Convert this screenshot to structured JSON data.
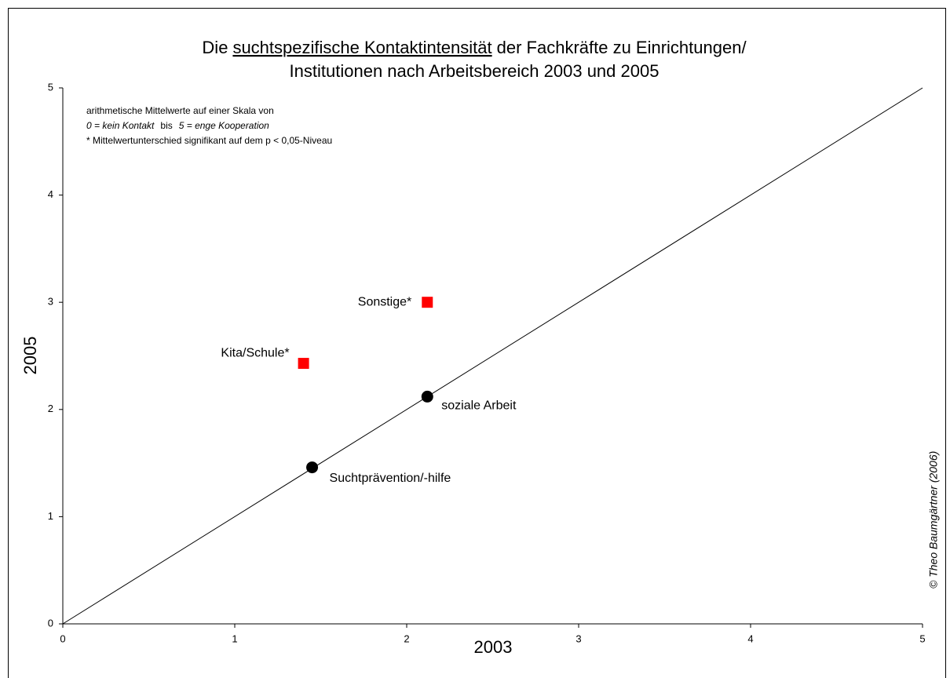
{
  "chart_data": {
    "type": "scatter",
    "title": {
      "line1": [
        "Die",
        "suchtspezifische Kontaktintensität",
        "der Fachkräfte zu Einrichtungen/"
      ],
      "line2": "Institutionen nach Arbeitsbereich 2003 und 2005"
    },
    "notes": {
      "line1": "arithmetische Mittelwerte auf einer Skala von",
      "line2": [
        "0 = kein Kontakt",
        "bis",
        "5 = enge Kooperation"
      ],
      "line3": "* Mittelwertunterschied signifikant auf dem p < 0,05-Niveau"
    },
    "copyright": "© Theo Baumgärtner (2006)",
    "xlabel": "2003",
    "ylabel": "2005",
    "xlim": [
      0,
      5
    ],
    "ylim": [
      0,
      5
    ],
    "xticks": [
      0,
      1,
      2,
      3,
      4,
      5
    ],
    "yticks": [
      0,
      1,
      2,
      3,
      4,
      5
    ],
    "diagonal": true,
    "grid": false,
    "points": [
      {
        "label": "Sonstige*",
        "x": 2.12,
        "y": 3.0,
        "marker": "square",
        "color": "#ff0000"
      },
      {
        "label": "Kita/Schule*",
        "x": 1.4,
        "y": 2.43,
        "marker": "square",
        "color": "#ff0000"
      },
      {
        "label": "soziale Arbeit",
        "x": 2.12,
        "y": 2.12,
        "marker": "circle",
        "color": "#000000"
      },
      {
        "label": "Suchtprävention/-hilfe",
        "x": 1.45,
        "y": 1.46,
        "marker": "circle",
        "color": "#000000"
      }
    ]
  }
}
